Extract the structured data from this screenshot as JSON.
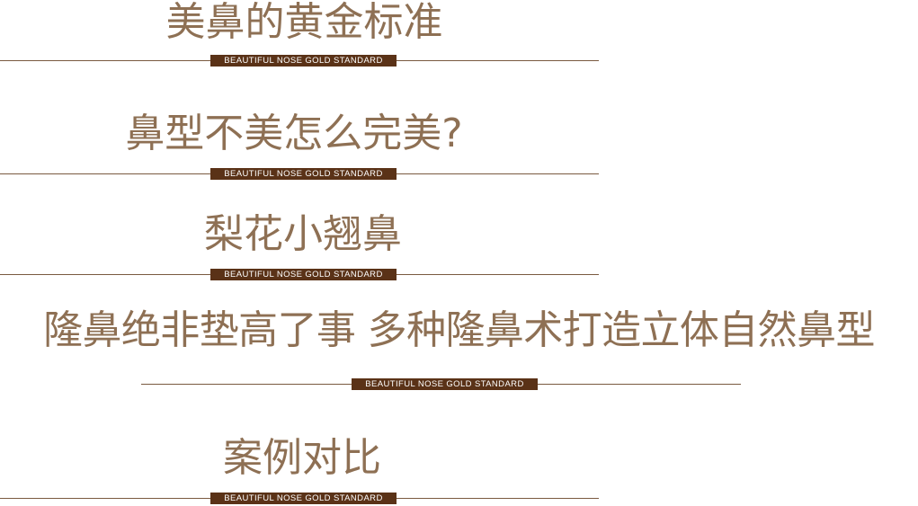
{
  "colors": {
    "heading_text": "#8e7054",
    "rule_line": "#7a5a40",
    "badge_background": "#5a3217",
    "badge_text": "#ffffff",
    "page_background": "#ffffff"
  },
  "sections": [
    {
      "title": "美鼻的黄金标准",
      "badge": "BEAUTIFUL NOSE GOLD STANDARD"
    },
    {
      "title": "鼻型不美怎么完美?",
      "badge": "BEAUTIFUL NOSE GOLD STANDARD"
    },
    {
      "title": "梨花小翘鼻",
      "badge": "BEAUTIFUL NOSE GOLD STANDARD"
    },
    {
      "title": "隆鼻绝非垫高了事  多种隆鼻术打造立体自然鼻型",
      "badge": "BEAUTIFUL NOSE GOLD STANDARD"
    },
    {
      "title": "案例对比",
      "badge": "BEAUTIFUL NOSE GOLD STANDARD"
    }
  ]
}
